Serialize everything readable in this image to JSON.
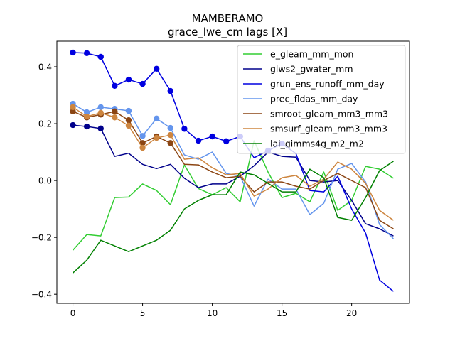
{
  "chart_data": {
    "type": "line",
    "title": "MAMBERAMO",
    "subtitle": "grace_lwe_cm lags [X]",
    "xlabel": "",
    "ylabel": "",
    "xlim": [
      -1.15,
      24.15
    ],
    "ylim": [
      -0.432,
      0.49
    ],
    "xticks": [
      0,
      5,
      10,
      15,
      20
    ],
    "yticks": [
      -0.4,
      -0.2,
      0.0,
      0.2,
      0.4
    ],
    "xtick_labels": [
      "0",
      "5",
      "10",
      "15",
      "20"
    ],
    "ytick_labels": [
      "−0.4",
      "−0.2",
      "0.0",
      "0.2",
      "0.4"
    ],
    "grid": false,
    "legend_position": "top-right",
    "x": [
      0,
      1,
      2,
      3,
      4,
      5,
      6,
      7,
      8,
      9,
      10,
      11,
      12,
      13,
      14,
      15,
      16,
      17,
      18,
      19,
      20,
      21,
      22,
      23
    ],
    "series": [
      {
        "name": "e_gleam_mm_mon",
        "color": "#32cd32",
        "values": [
          -0.245,
          -0.19,
          -0.195,
          -0.06,
          -0.058,
          -0.012,
          -0.035,
          -0.085,
          0.055,
          -0.028,
          -0.05,
          -0.025,
          -0.075,
          0.14,
          0.03,
          -0.06,
          -0.045,
          -0.075,
          0.03,
          -0.105,
          -0.07,
          0.05,
          0.04,
          0.008
        ],
        "marked": []
      },
      {
        "name": "glws2_gwater_mm",
        "color": "#00008b",
        "values": [
          0.195,
          0.19,
          0.183,
          0.085,
          0.096,
          0.057,
          0.042,
          0.057,
          0.008,
          -0.025,
          -0.012,
          -0.012,
          0.015,
          0.052,
          0.1,
          0.085,
          0.082,
          0.0,
          -0.005,
          0.0,
          -0.07,
          -0.152,
          -0.17,
          -0.195
        ],
        "marked": [
          0,
          1,
          2
        ]
      },
      {
        "name": "grun_ens_runoff_mm_day",
        "color": "#0000e0",
        "values": [
          0.45,
          0.448,
          0.435,
          0.333,
          0.355,
          0.34,
          0.393,
          0.315,
          0.182,
          0.14,
          0.155,
          0.138,
          0.155,
          0.08,
          0.105,
          0.13,
          0.095,
          -0.035,
          -0.04,
          0.015,
          -0.1,
          -0.185,
          -0.35,
          -0.39
        ],
        "marked": [
          0,
          1,
          2,
          3,
          4,
          5,
          6,
          7,
          8,
          9,
          10,
          11,
          12,
          14,
          15
        ]
      },
      {
        "name": "prec_fldas_mm_day",
        "color": "#6495ed",
        "values": [
          0.27,
          0.24,
          0.258,
          0.252,
          0.245,
          0.157,
          0.218,
          0.185,
          0.09,
          0.075,
          0.1,
          0.025,
          0.015,
          -0.09,
          0.005,
          -0.03,
          -0.03,
          -0.12,
          -0.08,
          0.04,
          0.06,
          -0.005,
          -0.155,
          -0.205
        ],
        "marked": [
          0,
          1,
          2,
          3,
          4,
          5,
          6,
          7
        ]
      },
      {
        "name": "smroot_gleam_mm3_mm3",
        "color": "#8b4513",
        "values": [
          0.243,
          0.222,
          0.232,
          0.243,
          0.212,
          0.132,
          0.155,
          0.132,
          0.057,
          0.055,
          0.03,
          0.01,
          0.015,
          -0.04,
          -0.005,
          -0.005,
          -0.02,
          -0.03,
          0.0,
          0.025,
          0.0,
          -0.025,
          -0.14,
          -0.17
        ],
        "marked": [
          0,
          1,
          2,
          3,
          4,
          5,
          6,
          7
        ]
      },
      {
        "name": "smsurf_gleam_mm3_mm3",
        "color": "#cd853f",
        "values": [
          0.258,
          0.225,
          0.238,
          0.222,
          0.193,
          0.115,
          0.15,
          0.16,
          0.075,
          0.08,
          0.045,
          0.02,
          0.025,
          -0.055,
          -0.03,
          0.01,
          0.018,
          -0.02,
          0.005,
          0.065,
          0.04,
          -0.01,
          -0.105,
          -0.14
        ],
        "marked": [
          0,
          1,
          2,
          3,
          4,
          5,
          6,
          7
        ]
      },
      {
        "name": "lai_gimms4g_m2_m2",
        "color": "#008000",
        "values": [
          -0.325,
          -0.28,
          -0.21,
          -0.23,
          -0.25,
          -0.23,
          -0.21,
          -0.175,
          -0.1,
          -0.07,
          -0.05,
          -0.05,
          0.03,
          0.02,
          -0.01,
          -0.04,
          -0.04,
          0.04,
          0.01,
          -0.13,
          -0.14,
          -0.06,
          0.035,
          0.068
        ],
        "marked": []
      }
    ]
  }
}
